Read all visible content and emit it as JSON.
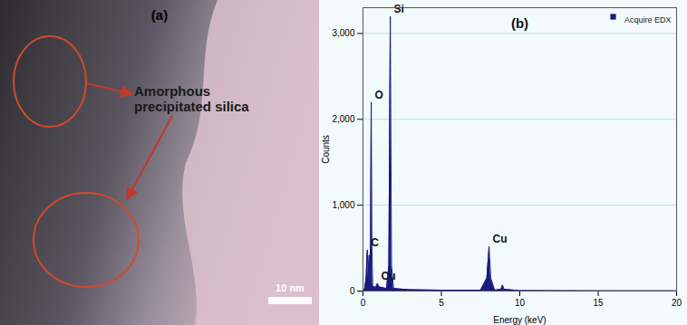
{
  "micrograph": {
    "panel_label": "(a)",
    "annotation": "Amorphous precipitated silica",
    "scale_bar": "10 nm"
  },
  "chart_data": {
    "type": "area",
    "title": "(b)",
    "x_label": "Energy (keV)",
    "y_label": "Counts",
    "x": [
      0.0,
      0.1,
      0.2,
      0.25,
      0.28,
      0.32,
      0.36,
      0.39,
      0.43,
      0.48,
      0.525,
      0.57,
      0.62,
      0.8,
      0.93,
      1.0,
      1.5,
      1.65,
      1.74,
      1.82,
      1.95,
      3.0,
      5.0,
      7.5,
      7.9,
      8.04,
      8.15,
      8.4,
      8.8,
      8.9,
      9.0,
      10.0,
      15.0,
      20.0
    ],
    "series": [
      {
        "name": "Acquire EDX",
        "color": "#1a1a80",
        "values": [
          0,
          20,
          150,
          400,
          480,
          150,
          300,
          420,
          100,
          600,
          2200,
          500,
          60,
          40,
          90,
          50,
          30,
          300,
          3200,
          300,
          30,
          15,
          10,
          10,
          150,
          520,
          150,
          10,
          20,
          70,
          20,
          5,
          3,
          2
        ]
      }
    ],
    "annotations": [
      {
        "text": "C",
        "x": 0.28,
        "y": 480
      },
      {
        "text": "O",
        "x": 0.525,
        "y": 2200
      },
      {
        "text": "Cu",
        "x": 0.93,
        "y": 90
      },
      {
        "text": "Si",
        "x": 1.74,
        "y": 3200
      },
      {
        "text": "Cu",
        "x": 8.04,
        "y": 520
      }
    ],
    "xlim": [
      0,
      20
    ],
    "xticks": [
      0,
      5,
      10,
      15,
      20
    ],
    "ylim": [
      0,
      3300
    ],
    "yticks": [
      0,
      1000,
      2000,
      3000
    ],
    "grid": true,
    "legend": "top-right"
  }
}
